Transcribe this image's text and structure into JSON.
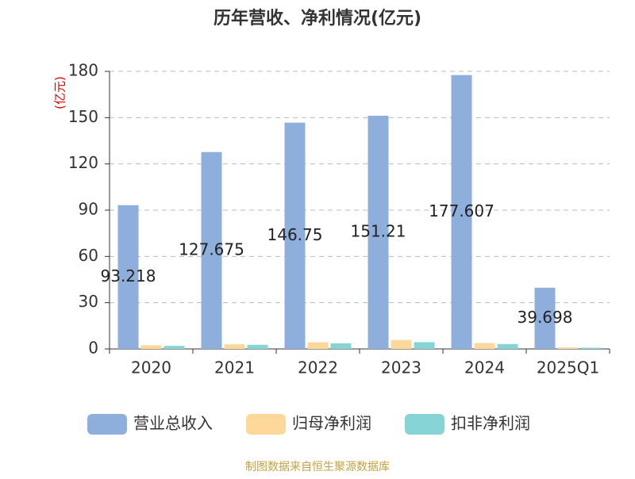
{
  "chart_data": {
    "type": "bar",
    "title": "历年营收、净利情况(亿元)",
    "y_axis_label": "(亿元)",
    "categories": [
      "2020",
      "2021",
      "2022",
      "2023",
      "2024",
      "2025Q1"
    ],
    "series": [
      {
        "name": "营业总收入",
        "color": "#8eaedc",
        "values": [
          93.218,
          127.675,
          146.75,
          151.21,
          177.607,
          39.698
        ],
        "show_labels": true
      },
      {
        "name": "归母净利润",
        "color": "#fdd89a",
        "values": [
          2.4,
          3.0,
          4.3,
          5.8,
          3.8,
          1.0
        ]
      },
      {
        "name": "扣非净利润",
        "color": "#86d4d6",
        "values": [
          2.0,
          2.7,
          3.6,
          4.4,
          3.2,
          0.8
        ]
      }
    ],
    "ylim": [
      0,
      180
    ],
    "yticks": [
      0,
      30,
      60,
      90,
      120,
      150,
      180
    ],
    "grid": true,
    "source": "制图数据来自恒生聚源数据库"
  }
}
